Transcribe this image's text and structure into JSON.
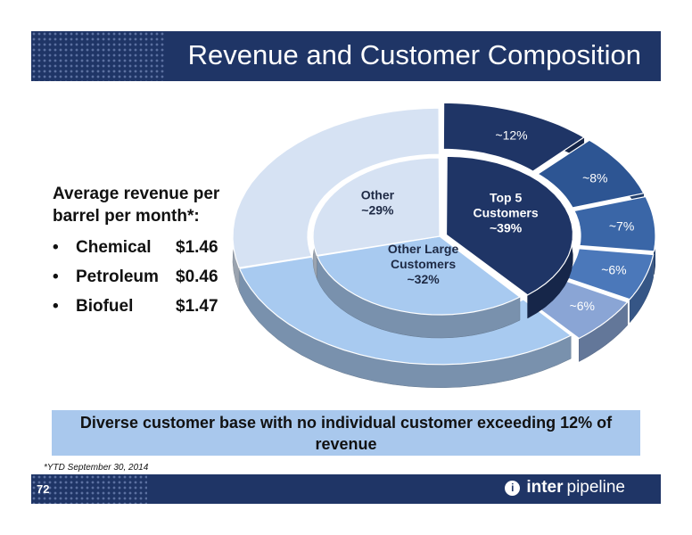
{
  "title": "Revenue and Customer Composition",
  "left_panel": {
    "heading_line1": "Average revenue per",
    "heading_line2": "barrel per month*:",
    "items": [
      {
        "bullet": "•",
        "label": "Chemical",
        "value": "$1.46"
      },
      {
        "bullet": "•",
        "label": "Petroleum",
        "value": "$0.46"
      },
      {
        "bullet": "•",
        "label": "Biofuel",
        "value": "$1.47"
      }
    ]
  },
  "callout": "Diverse customer base with no individual customer exceeding 12% of revenue",
  "footnote": "*YTD September 30, 2014",
  "page_number": "72",
  "logo": {
    "mark": "i",
    "text_a": "inter",
    "text_b": "pipeline"
  },
  "colors": {
    "navy": "#1f3566",
    "light_blue": "#a9c8ed"
  },
  "chart_data": {
    "type": "pie",
    "inner": {
      "slices": [
        {
          "label": "Top 5 Customers",
          "label_lines": [
            "Top 5",
            "Customers",
            "~39%"
          ],
          "value": 39,
          "color": "#1f3566",
          "text_color": "#ffffff"
        },
        {
          "label": "Other Large Customers",
          "label_lines": [
            "Other Large",
            "Customers",
            "~32%"
          ],
          "value": 32,
          "color": "#a8caf0",
          "text_color": "#1e2a45"
        },
        {
          "label": "Other",
          "label_lines": [
            "Other",
            "~29%"
          ],
          "value": 29,
          "color": "#d6e2f3",
          "text_color": "#1e2a45"
        }
      ]
    },
    "outer": {
      "slices": [
        {
          "label": "~12%",
          "value": 12,
          "color": "#1f3566",
          "text_color": "#ffffff"
        },
        {
          "label": "~8%",
          "value": 8,
          "color": "#2d5593",
          "text_color": "#ffffff"
        },
        {
          "label": "~7%",
          "value": 7,
          "color": "#3a66a7",
          "text_color": "#ffffff"
        },
        {
          "label": "~6%",
          "value": 6,
          "color": "#4b78ba",
          "text_color": "#ffffff"
        },
        {
          "label": "~6%",
          "value": 6,
          "color": "#8aa5d5",
          "text_color": "#ffffff"
        },
        {
          "label": "",
          "value": 32,
          "color": "#a8caf0",
          "text_color": "#ffffff"
        },
        {
          "label": "",
          "value": 29,
          "color": "#d6e2f3",
          "text_color": "#ffffff"
        }
      ]
    }
  }
}
